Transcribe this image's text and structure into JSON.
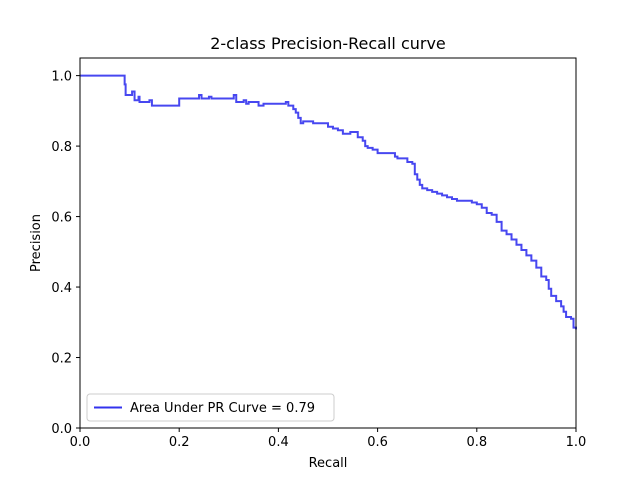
{
  "chart_data": {
    "type": "line",
    "title": "2-class Precision-Recall curve",
    "xlabel": "Recall",
    "ylabel": "Precision",
    "xlim": [
      0.0,
      1.0
    ],
    "ylim": [
      0.0,
      1.05
    ],
    "x_ticks": [
      0.0,
      0.2,
      0.4,
      0.6,
      0.8,
      1.0
    ],
    "y_ticks": [
      0.0,
      0.2,
      0.4,
      0.6,
      0.8,
      1.0
    ],
    "x_tick_labels": [
      "0.0",
      "0.2",
      "0.4",
      "0.6",
      "0.8",
      "1.0"
    ],
    "y_tick_labels": [
      "0.0",
      "0.2",
      "0.4",
      "0.6",
      "0.8",
      "1.0"
    ],
    "grid": false,
    "legend_position": "lower-left",
    "series": [
      {
        "name": "Area Under PR Curve = 0.79",
        "color": "#3333ee",
        "style": "steps-post",
        "x": [
          0.0,
          0.085,
          0.09,
          0.092,
          0.105,
          0.11,
          0.118,
          0.12,
          0.14,
          0.145,
          0.2,
          0.24,
          0.245,
          0.26,
          0.265,
          0.31,
          0.315,
          0.33,
          0.335,
          0.34,
          0.36,
          0.37,
          0.38,
          0.415,
          0.42,
          0.43,
          0.435,
          0.44,
          0.445,
          0.45,
          0.47,
          0.5,
          0.51,
          0.52,
          0.53,
          0.54,
          0.545,
          0.56,
          0.57,
          0.575,
          0.58,
          0.59,
          0.6,
          0.62,
          0.635,
          0.64,
          0.66,
          0.67,
          0.675,
          0.68,
          0.685,
          0.69,
          0.7,
          0.71,
          0.72,
          0.73,
          0.74,
          0.75,
          0.76,
          0.77,
          0.79,
          0.8,
          0.81,
          0.82,
          0.83,
          0.84,
          0.85,
          0.86,
          0.87,
          0.88,
          0.89,
          0.9,
          0.91,
          0.92,
          0.93,
          0.94,
          0.945,
          0.95,
          0.96,
          0.97,
          0.975,
          0.98,
          0.99,
          0.995,
          1.0
        ],
        "y": [
          1.0,
          1.0,
          0.975,
          0.945,
          0.955,
          0.93,
          0.94,
          0.925,
          0.93,
          0.915,
          0.935,
          0.945,
          0.935,
          0.94,
          0.935,
          0.945,
          0.925,
          0.93,
          0.92,
          0.925,
          0.915,
          0.92,
          0.92,
          0.925,
          0.915,
          0.905,
          0.895,
          0.88,
          0.865,
          0.87,
          0.865,
          0.855,
          0.85,
          0.845,
          0.835,
          0.835,
          0.84,
          0.825,
          0.815,
          0.8,
          0.795,
          0.79,
          0.78,
          0.78,
          0.77,
          0.765,
          0.755,
          0.75,
          0.72,
          0.705,
          0.69,
          0.68,
          0.675,
          0.67,
          0.665,
          0.66,
          0.655,
          0.65,
          0.645,
          0.645,
          0.64,
          0.635,
          0.625,
          0.61,
          0.605,
          0.585,
          0.56,
          0.55,
          0.535,
          0.52,
          0.505,
          0.49,
          0.475,
          0.455,
          0.43,
          0.42,
          0.395,
          0.375,
          0.36,
          0.345,
          0.33,
          0.315,
          0.31,
          0.285,
          0.28
        ]
      }
    ]
  }
}
